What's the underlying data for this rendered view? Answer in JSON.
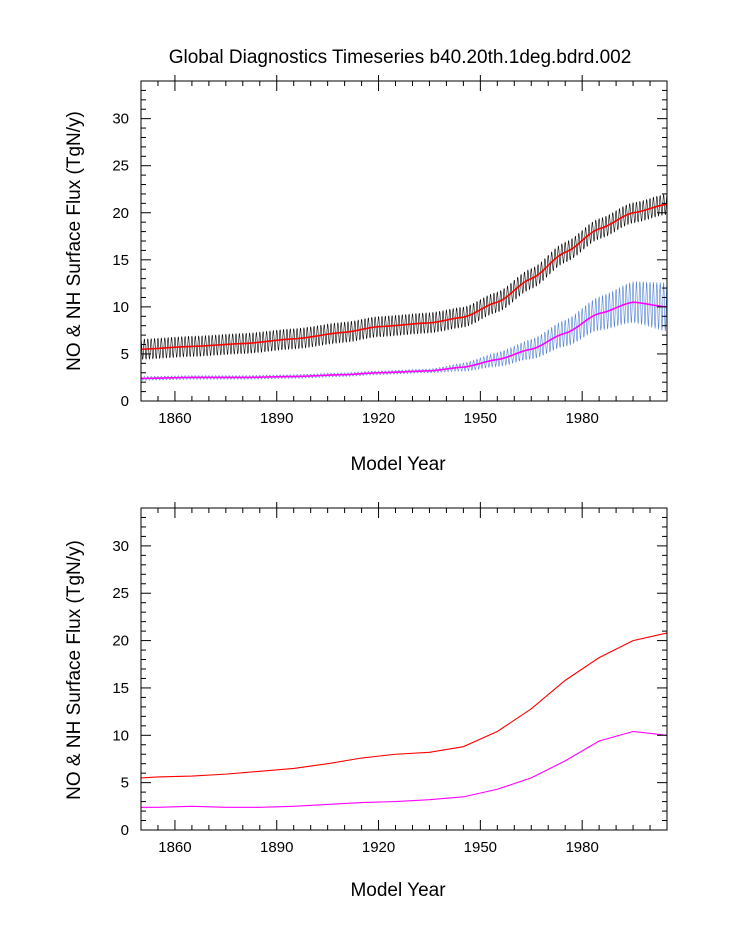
{
  "title": "Global Diagnostics Timeseries b40.20th.1deg.bdrd.002",
  "colors": {
    "no_monthly": "#000000",
    "no_annual": "#ff0000",
    "nh_monthly": "#4f7fd6",
    "nh_annual": "#ff00ff"
  },
  "chart_data": [
    {
      "type": "line",
      "panel": "top",
      "xlabel": "Model Year",
      "ylabel": "NO & NH Surface Flux (TgN/y)",
      "xlim": [
        1850,
        2005
      ],
      "ylim": [
        0,
        34
      ],
      "xticks": [
        1860,
        1890,
        1920,
        1950,
        1980
      ],
      "yticks": [
        0,
        5,
        10,
        15,
        20,
        25,
        30
      ],
      "grid": false,
      "series": [
        {
          "style": "monthly-oscillation",
          "color_key": "no_monthly",
          "x": [
            1850,
            1865,
            1880,
            1895,
            1910,
            1920,
            1935,
            1945,
            1955,
            1965,
            1975,
            1985,
            1995,
            2005
          ],
          "y": [
            5.5,
            5.8,
            6.1,
            6.6,
            7.3,
            7.9,
            8.3,
            8.9,
            10.5,
            13.0,
            15.8,
            18.3,
            20.0,
            20.9
          ],
          "amplitude": 1.1
        },
        {
          "style": "monthly-oscillation",
          "color_key": "nh_monthly",
          "x": [
            1850,
            1865,
            1880,
            1895,
            1910,
            1920,
            1935,
            1945,
            1955,
            1965,
            1975,
            1985,
            1995,
            2005
          ],
          "y": [
            2.4,
            2.5,
            2.5,
            2.6,
            2.8,
            3.0,
            3.2,
            3.6,
            4.4,
            5.5,
            7.2,
            9.3,
            10.5,
            10.0
          ],
          "amplitude_start": 0.2,
          "amplitude_end": 2.6
        },
        {
          "style": "annual",
          "color_key": "no_annual",
          "x": [
            1850,
            1865,
            1880,
            1895,
            1910,
            1920,
            1935,
            1945,
            1955,
            1965,
            1975,
            1985,
            1995,
            2005
          ],
          "y": [
            5.5,
            5.8,
            6.1,
            6.6,
            7.3,
            7.9,
            8.3,
            8.9,
            10.5,
            13.0,
            15.8,
            18.3,
            20.0,
            20.9
          ]
        },
        {
          "style": "annual",
          "color_key": "nh_annual",
          "x": [
            1850,
            1865,
            1880,
            1895,
            1910,
            1920,
            1935,
            1945,
            1955,
            1965,
            1975,
            1985,
            1995,
            2005
          ],
          "y": [
            2.4,
            2.5,
            2.5,
            2.6,
            2.8,
            3.0,
            3.2,
            3.6,
            4.4,
            5.5,
            7.2,
            9.3,
            10.5,
            10.0
          ]
        }
      ]
    },
    {
      "type": "line",
      "panel": "bottom",
      "xlabel": "Model Year",
      "ylabel": "NO & NH Surface Flux (TgN/y)",
      "xlim": [
        1850,
        2005
      ],
      "ylim": [
        0,
        34
      ],
      "xticks": [
        1860,
        1890,
        1920,
        1950,
        1980
      ],
      "yticks": [
        0,
        5,
        10,
        15,
        20,
        25,
        30
      ],
      "grid": false,
      "series": [
        {
          "style": "decadal",
          "color_key": "no_annual",
          "x": [
            1850,
            1855,
            1865,
            1875,
            1885,
            1895,
            1905,
            1915,
            1925,
            1935,
            1945,
            1955,
            1965,
            1975,
            1985,
            1995,
            2005
          ],
          "y": [
            5.5,
            5.6,
            5.7,
            5.9,
            6.2,
            6.5,
            7.0,
            7.6,
            8.0,
            8.2,
            8.8,
            10.4,
            12.8,
            15.8,
            18.2,
            20.0,
            20.8
          ]
        },
        {
          "style": "decadal",
          "color_key": "nh_annual",
          "x": [
            1850,
            1855,
            1865,
            1875,
            1885,
            1895,
            1905,
            1915,
            1925,
            1935,
            1945,
            1955,
            1965,
            1975,
            1985,
            1995,
            2005
          ],
          "y": [
            2.4,
            2.4,
            2.5,
            2.4,
            2.4,
            2.5,
            2.7,
            2.9,
            3.0,
            3.2,
            3.5,
            4.3,
            5.5,
            7.3,
            9.4,
            10.4,
            10.0
          ]
        }
      ]
    }
  ]
}
